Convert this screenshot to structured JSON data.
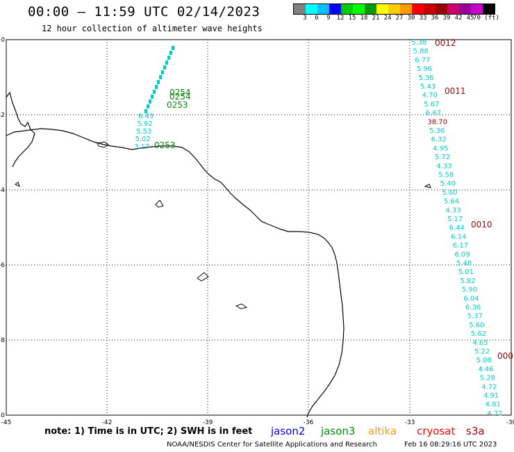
{
  "header": {
    "title": "00:00 – 11:59 UTC 02/14/2023",
    "subtitle": "12 hour collection of altimeter wave heights"
  },
  "color_scale": {
    "colors": [
      "#808080",
      "#00ffff",
      "#00c0ff",
      "#0000ff",
      "#00cc00",
      "#00ff00",
      "#009900",
      "#ffff00",
      "#ffcc00",
      "#ff9900",
      "#ff0000",
      "#cc0000",
      "#990000",
      "#cc0066",
      "#990099",
      "#cc00cc",
      "#000000"
    ],
    "labels": [
      "3",
      "6",
      "9",
      "12",
      "15",
      "18",
      "21",
      "24",
      "27",
      "30",
      "33",
      "36",
      "39",
      "42",
      "45",
      "70 (ft)"
    ]
  },
  "axes": {
    "x_ticks": [
      "-45",
      "-42",
      "-39",
      "-36",
      "-33",
      "-30"
    ],
    "y_ticks": [
      "0",
      "-2",
      "-4",
      "-6",
      "-8",
      "-10"
    ]
  },
  "tracks": {
    "cyan_track_values": [
      "5.38",
      "5.88",
      "6.77",
      "5.96",
      "5.36",
      "5.43",
      "4.70",
      "5.67",
      "6.67",
      "38.70",
      "5.36",
      "6.32",
      "4.95",
      "5.72",
      "4.33",
      "5.58",
      "5.40",
      "5.60",
      "5.64",
      "4.33",
      "5.17",
      "6.44",
      "6.14",
      "6.17",
      "6.09",
      "5.48",
      "5.01",
      "5.82",
      "5.90",
      "6.04",
      "6.36",
      "5.37",
      "5.60",
      "5.62",
      "4.65",
      "5.22",
      "5.08",
      "4.46",
      "5.28",
      "4.72",
      "4.91",
      "4.81",
      "4.72"
    ],
    "cyan_track_times": [
      "0012",
      "0011",
      "0010",
      "000"
    ],
    "west_track_values": [
      "6.43",
      "5.92",
      "5.53",
      "5.02",
      "3.17"
    ],
    "west_track_times": [
      "0254",
      "0254",
      "0253",
      "0253"
    ]
  },
  "legend": {
    "note": "note: 1) Time is in UTC; 2) SWH is in feet",
    "items": [
      {
        "label": "jason2",
        "color": "#0000ff"
      },
      {
        "label": "jason3",
        "color": "#008800"
      },
      {
        "label": "altika",
        "color": "#ff9900"
      },
      {
        "label": "cryosat",
        "color": "#ff0000"
      },
      {
        "label": "s3a",
        "color": "#990000"
      }
    ]
  },
  "footer": {
    "credit": "NOAA/NESDIS Center for Satellite Applications and Research",
    "timestamp": "Feb 16 08:29:16 UTC 2023"
  }
}
